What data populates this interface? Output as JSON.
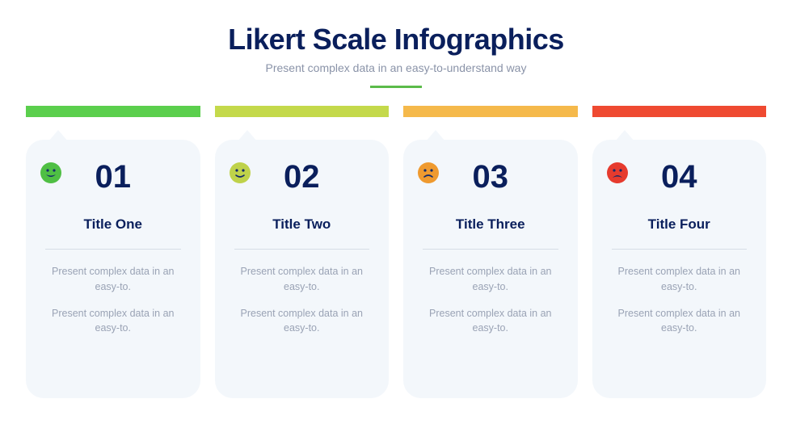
{
  "header": {
    "title": "Likert Scale Infographics",
    "subtitle": "Present complex data in an easy-to-understand way",
    "title_color": "#0a1f5c",
    "subtitle_color": "#8a93a8",
    "underline_color": "#5bbb4a"
  },
  "background_color": "#ffffff",
  "card_bg": "#f3f7fb",
  "divider_color": "#d6dde6",
  "scale_colors": [
    "#5bcf4d",
    "#c4d94b",
    "#f5b94b",
    "#ef4a31"
  ],
  "cards": [
    {
      "number": "01",
      "title": "Title One",
      "body1": "Present complex data in an easy-to.",
      "body2": "Present complex data in an easy-to.",
      "face_color": "#4fbf44",
      "face_mood": "grin"
    },
    {
      "number": "02",
      "title": "Title Two",
      "body1": "Present complex data in an easy-to.",
      "body2": "Present complex data in an easy-to.",
      "face_color": "#bfd24a",
      "face_mood": "smile"
    },
    {
      "number": "03",
      "title": "Title Three",
      "body1": "Present complex data in an easy-to.",
      "body2": "Present complex data in an easy-to.",
      "face_color": "#ef9a2f",
      "face_mood": "frown"
    },
    {
      "number": "04",
      "title": "Title Four",
      "body1": "Present complex data in an easy-to.",
      "body2": "Present complex data in an easy-to.",
      "face_color": "#e63b2e",
      "face_mood": "sad"
    }
  ],
  "text": {
    "number_color": "#0a1f5c",
    "title_color": "#0a1f5c",
    "body_color": "#9aa3b5"
  }
}
